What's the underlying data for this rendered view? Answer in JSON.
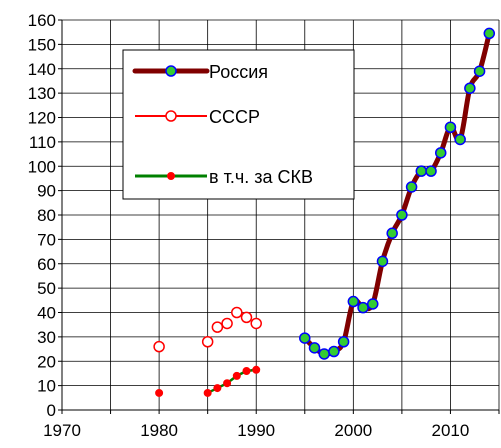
{
  "chart_data": {
    "type": "line",
    "title": "",
    "xlabel": "",
    "ylabel": "",
    "xlim": [
      1970,
      2015
    ],
    "ylim": [
      0,
      160
    ],
    "x_ticks": [
      1970,
      1980,
      1990,
      2000,
      2010
    ],
    "x_gridlines": [
      1970,
      1975,
      1980,
      1985,
      1990,
      1995,
      2000,
      2005,
      2010,
      2015
    ],
    "y_ticks": [
      0,
      10,
      20,
      30,
      40,
      50,
      60,
      70,
      80,
      90,
      100,
      110,
      120,
      130,
      140,
      150,
      160
    ],
    "grid": true,
    "legend": {
      "placement": "top-left",
      "entries": [
        "Россия",
        "СССР",
        "в т.ч. за СКВ"
      ]
    },
    "series": [
      {
        "name": "Россия",
        "line_color": "#800000",
        "marker_fill": "#33cc33",
        "marker_stroke": "#0000ff",
        "x": [
          1995,
          1996,
          1997,
          1998,
          1999,
          2000,
          2001,
          2002,
          2003,
          2004,
          2005,
          2006,
          2007,
          2008,
          2009,
          2010,
          2011,
          2012,
          2013,
          2014
        ],
        "y": [
          29.5,
          25.5,
          23.0,
          24.0,
          28.0,
          44.5,
          42.0,
          43.5,
          61.0,
          72.5,
          80.0,
          91.5,
          98.0,
          98.0,
          105.5,
          116.0,
          111.0,
          132.0,
          139.0,
          154.5
        ]
      },
      {
        "name": "СССР",
        "line_color": "#ff0000",
        "marker_fill": "#ffffff",
        "marker_stroke": "#ff0000",
        "segments": [
          {
            "x": [
              1980
            ],
            "y": [
              26.0
            ]
          },
          {
            "x": [
              1985,
              1986,
              1987,
              1988,
              1989,
              1990
            ],
            "y": [
              28.0,
              34.0,
              35.5,
              40.0,
              38.0,
              35.5
            ]
          }
        ]
      },
      {
        "name": "в т.ч. за СКВ",
        "line_color": "#008000",
        "marker_fill": "#ff0000",
        "marker_stroke": "#ff0000",
        "segments": [
          {
            "x": [
              1980
            ],
            "y": [
              7.0
            ]
          },
          {
            "x": [
              1985,
              1986,
              1987,
              1988,
              1989,
              1990
            ],
            "y": [
              7.0,
              9.0,
              11.0,
              14.0,
              16.0,
              16.5
            ]
          }
        ]
      }
    ]
  }
}
